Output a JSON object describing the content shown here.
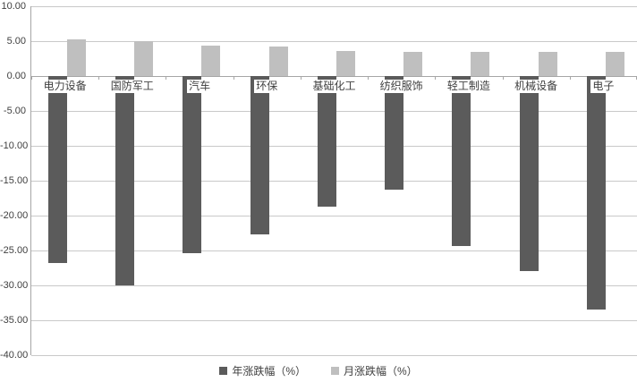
{
  "chart_data": {
    "type": "bar",
    "title": "",
    "xlabel": "",
    "ylabel": "",
    "categories": [
      "电力设备",
      "国防军工",
      "汽车",
      "环保",
      "基础化工",
      "纺织服饰",
      "轻工制造",
      "机械设备",
      "电子"
    ],
    "series": [
      {
        "name": "年涨跌幅（%）",
        "color": "#5b5b5b",
        "values": [
          -26.8,
          -30.0,
          -25.4,
          -22.7,
          -18.7,
          -16.3,
          -24.3,
          -27.9,
          -33.5
        ]
      },
      {
        "name": "月涨跌幅（%）",
        "color": "#bfbfbf",
        "values": [
          5.2,
          5.0,
          4.4,
          4.2,
          3.6,
          3.5,
          3.5,
          3.5,
          3.4
        ]
      }
    ],
    "ylim": [
      -40,
      10
    ],
    "ytick_step": 5,
    "yticks": [
      "10.00",
      "5.00",
      "0.00",
      "-5.00",
      "-10.00",
      "-15.00",
      "-20.00",
      "-25.00",
      "-30.00",
      "-35.00",
      "-40.00"
    ],
    "grid": true,
    "legend_position": "bottom"
  },
  "colors": {
    "background": "#ffffff",
    "gridline": "#c9c9c9",
    "axis_line": "#a6a6a6",
    "text": "#404040"
  }
}
